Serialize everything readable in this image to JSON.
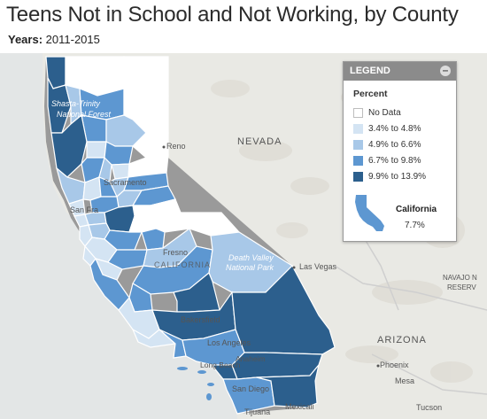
{
  "header": {
    "title": "Teens Not in School and Not Working, by County",
    "years_label": "Years:",
    "years_value": "2011-2015"
  },
  "legend": {
    "heading": "LEGEND",
    "collapse_symbol": "–",
    "subtitle": "Percent",
    "items": [
      {
        "label": "No Data",
        "color": "#ffffff"
      },
      {
        "label": "3.4% to 4.8%",
        "color": "#d4e4f3"
      },
      {
        "label": "4.9% to 6.6%",
        "color": "#a8c8e8"
      },
      {
        "label": "6.7% to 9.8%",
        "color": "#5d97d1"
      },
      {
        "label": "9.9% to 13.9%",
        "color": "#2c5f8d"
      }
    ],
    "state_name": "California",
    "state_value": "7.7%"
  },
  "map_labels": {
    "nevada": "NEVADA",
    "california": "CALIFORNIA",
    "arizona": "ARIZONA",
    "navajo1": "NAVAJO N",
    "navajo2": "RESERV",
    "reno": "Reno",
    "sacramento": "Sacramento",
    "san_francisco": "San Fra",
    "fresno": "Fresno",
    "bakersfield": "Bakersfield",
    "los_angeles": "Los Angeles",
    "long_beach": "Long Beach",
    "anaheim": "Anaheim",
    "san_diego": "San Diego",
    "tijuana": "Tijuana",
    "mexicali": "Mexicali",
    "las_vegas": "Las Vegas",
    "phoenix": "Phoenix",
    "mesa": "Mesa",
    "tucson": "Tucson",
    "shasta1": "Shasta-Trinity",
    "shasta2": "National Forest",
    "death1": "Death Valley",
    "death2": "National Park"
  },
  "colors": {
    "no_data": "#ffffff",
    "c1": "#d4e4f3",
    "c2": "#a8c8e8",
    "c3": "#5d97d1",
    "c4": "#2c5f8d",
    "border": "#ffffff",
    "basemap": "#e9e9e4"
  }
}
